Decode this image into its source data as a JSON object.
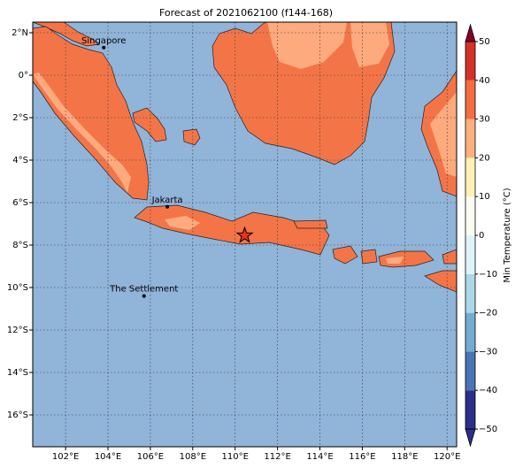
{
  "title": "Forecast of 2021062100 (f144-168)",
  "lonlim": [
    100.45,
    120.45
  ],
  "latlim": [
    -17.5,
    2.5
  ],
  "lonticks": [
    {
      "value": 102,
      "label": "102°E"
    },
    {
      "value": 104,
      "label": "104°E"
    },
    {
      "value": 106,
      "label": "106°E"
    },
    {
      "value": 108,
      "label": "108°E"
    },
    {
      "value": 110,
      "label": "110°E"
    },
    {
      "value": 112,
      "label": "112°E"
    },
    {
      "value": 114,
      "label": "114°E"
    },
    {
      "value": 116,
      "label": "116°E"
    },
    {
      "value": 118,
      "label": "118°E"
    },
    {
      "value": 120,
      "label": "120°E"
    }
  ],
  "latticks": [
    {
      "value": 2,
      "label": "2°N"
    },
    {
      "value": 0,
      "label": "0°"
    },
    {
      "value": -2,
      "label": "2°S"
    },
    {
      "value": -4,
      "label": "4°S"
    },
    {
      "value": -6,
      "label": "6°S"
    },
    {
      "value": -8,
      "label": "8°S"
    },
    {
      "value": -10,
      "label": "10°S"
    },
    {
      "value": -12,
      "label": "12°S"
    },
    {
      "value": -14,
      "label": "14°S"
    },
    {
      "value": -16,
      "label": "16°S"
    }
  ],
  "cities": [
    {
      "name": "Singapore",
      "lon": 103.8,
      "lat": 1.3
    },
    {
      "name": "Jakarta",
      "lon": 106.8,
      "lat": -6.2
    },
    {
      "name": "The Settlement",
      "lon": 105.7,
      "lat": -10.4
    }
  ],
  "marker": {
    "lon": 110.45,
    "lat": -7.55
  },
  "colorbar": {
    "label": "Min Temperature (°C)",
    "ticks": [
      {
        "value": -50,
        "label": "−50"
      },
      {
        "value": -40,
        "label": "−40"
      },
      {
        "value": -30,
        "label": "−30"
      },
      {
        "value": -20,
        "label": "−20"
      },
      {
        "value": -10,
        "label": "−10"
      },
      0,
      10,
      20,
      30,
      40,
      50
    ],
    "colors": [
      "#2c2f8a",
      "#4a74b4",
      "#74acd1",
      "#abd8e9",
      "#e0f3f8",
      "#fbfdf0",
      "#fff1b5",
      "#fdb07e",
      "#f46d43",
      "#d73027",
      "#8a0026"
    ]
  }
}
